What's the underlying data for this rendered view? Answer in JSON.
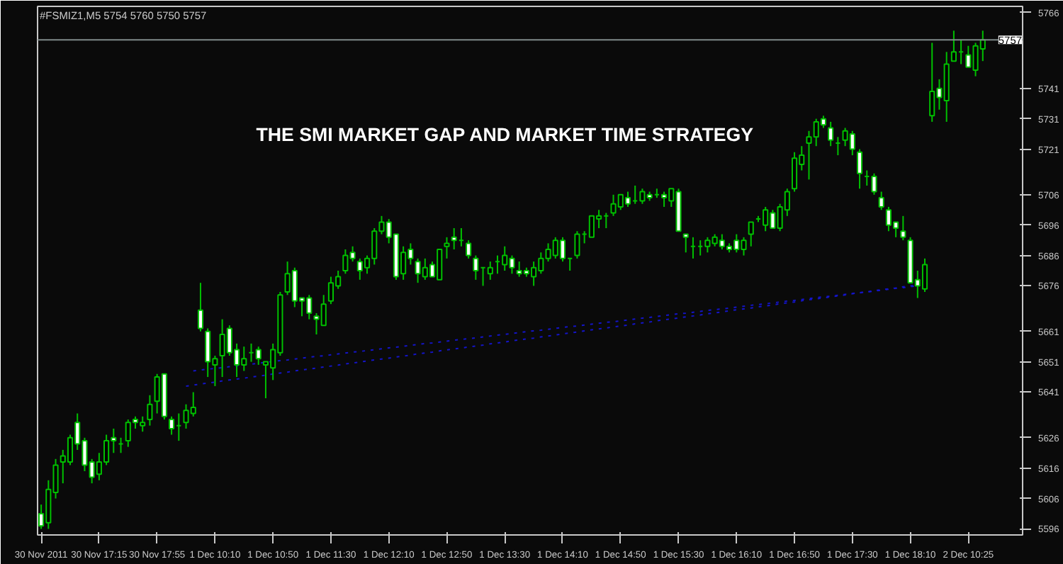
{
  "chart_data": {
    "type": "candlestick",
    "title": "#FSMIZ1,M5  5754 5760 5750 5757",
    "annotations": [
      "THE SMI MARKET GAP AND MARKET TIME STRATEGY"
    ],
    "color": "#00c000",
    "grid": false,
    "categories": [
      "30 Nov 2011",
      null,
      null,
      null,
      null,
      null,
      null,
      null,
      "30 Nov 17:15",
      null,
      null,
      null,
      null,
      null,
      null,
      null,
      "30 Nov 17:55",
      null,
      null,
      null,
      null,
      null,
      null,
      null,
      "1 Dec 10:10",
      null,
      null,
      null,
      null,
      null,
      null,
      null,
      "1 Dec 10:50",
      null,
      null,
      null,
      null,
      null,
      null,
      null,
      "1 Dec 11:30",
      null,
      null,
      null,
      null,
      null,
      null,
      null,
      "1 Dec 12:10",
      null,
      null,
      null,
      null,
      null,
      null,
      null,
      "1 Dec 12:50",
      null,
      null,
      null,
      null,
      null,
      null,
      null,
      "1 Dec 13:30",
      null,
      null,
      null,
      null,
      null,
      null,
      null,
      "1 Dec 14:10",
      null,
      null,
      null,
      null,
      null,
      null,
      null,
      "1 Dec 14:50",
      null,
      null,
      null,
      null,
      null,
      null,
      null,
      "1 Dec 15:30",
      null,
      null,
      null,
      null,
      null,
      null,
      null,
      "1 Dec 16:10",
      null,
      null,
      null,
      null,
      null,
      null,
      null,
      "1 Dec 16:50",
      null,
      null,
      null,
      null,
      null,
      null,
      null,
      "1 Dec 17:30",
      null,
      null,
      null,
      null,
      null,
      null,
      null,
      "1 Dec 18:10",
      null,
      null,
      null,
      null,
      null,
      null,
      null,
      "2 Dec 10:25",
      null,
      null
    ],
    "ohlc": [
      [
        5601,
        5604,
        5596,
        5597
      ],
      [
        5598,
        5612,
        5596,
        5609
      ],
      [
        5608,
        5619,
        5606,
        5617
      ],
      [
        5618,
        5622,
        5611,
        5620
      ],
      [
        5618,
        5627,
        5617,
        5626
      ],
      [
        5631,
        5634,
        5622,
        5624
      ],
      [
        5625,
        5626,
        5615,
        5617
      ],
      [
        5618,
        5619,
        5611,
        5613
      ],
      [
        5614,
        5621,
        5612,
        5618
      ],
      [
        5618,
        5627,
        5617,
        5625
      ],
      [
        5626,
        5629,
        5621,
        5625
      ],
      [
        5624,
        5626,
        5621,
        5624
      ],
      [
        5625,
        5632,
        5623,
        5631
      ],
      [
        5632,
        5633,
        5629,
        5631
      ],
      [
        5630,
        5633,
        5628,
        5631
      ],
      [
        5632,
        5640,
        5630,
        5637
      ],
      [
        5638,
        5647,
        5634,
        5646
      ],
      [
        5647,
        5647,
        5632,
        5633
      ],
      [
        5632,
        5633,
        5627,
        5629
      ],
      [
        5630,
        5634,
        5625,
        5630
      ],
      [
        5631,
        5637,
        5629,
        5635
      ],
      [
        5634,
        5641,
        5633,
        5636
      ],
      [
        5668,
        5677,
        5661,
        5662
      ],
      [
        5661,
        5662,
        5646,
        5651
      ],
      [
        5650,
        5653,
        5643,
        5652
      ],
      [
        5653,
        5665,
        5646,
        5660
      ],
      [
        5662,
        5663,
        5653,
        5654
      ],
      [
        5655,
        5657,
        5646,
        5650
      ],
      [
        5650,
        5656,
        5648,
        5652
      ],
      [
        5654,
        5657,
        5651,
        5654
      ],
      [
        5655,
        5656,
        5650,
        5652
      ],
      [
        5650,
        5651,
        5639,
        5651
      ],
      [
        5649,
        5657,
        5645,
        5655
      ],
      [
        5654,
        5674,
        5653,
        5673
      ],
      [
        5674,
        5684,
        5673,
        5680
      ],
      [
        5681,
        5682,
        5669,
        5671
      ],
      [
        5672,
        5672,
        5666,
        5671
      ],
      [
        5672,
        5673,
        5665,
        5667
      ],
      [
        5666,
        5667,
        5660,
        5665
      ],
      [
        5663,
        5673,
        5663,
        5670
      ],
      [
        5671,
        5679,
        5670,
        5677
      ],
      [
        5676,
        5681,
        5675,
        5679
      ],
      [
        5681,
        5688,
        5680,
        5686
      ],
      [
        5687,
        5689,
        5684,
        5685
      ],
      [
        5684,
        5685,
        5678,
        5681
      ],
      [
        5682,
        5686,
        5680,
        5685
      ],
      [
        5685,
        5695,
        5683,
        5694
      ],
      [
        5694,
        5699,
        5693,
        5697
      ],
      [
        5697,
        5698,
        5690,
        5692
      ],
      [
        5693,
        5693,
        5678,
        5679
      ],
      [
        5680,
        5689,
        5678,
        5687
      ],
      [
        5688,
        5690,
        5683,
        5685
      ],
      [
        5684,
        5685,
        5677,
        5680
      ],
      [
        5679,
        5685,
        5678,
        5682
      ],
      [
        5683,
        5684,
        5679,
        5679
      ],
      [
        5678,
        5688,
        5678,
        5688
      ],
      [
        5689,
        5692,
        5685,
        5690
      ],
      [
        5692,
        5695,
        5688,
        5691
      ],
      [
        5691,
        5695,
        5689,
        5691
      ],
      [
        5690,
        5691,
        5685,
        5686
      ],
      [
        5685,
        5686,
        5678,
        5681
      ],
      [
        5682,
        5682,
        5676,
        5682
      ],
      [
        5680,
        5684,
        5678,
        5682
      ],
      [
        5684,
        5686,
        5680,
        5684
      ],
      [
        5683,
        5689,
        5681,
        5686
      ],
      [
        5685,
        5686,
        5680,
        5682
      ],
      [
        5681,
        5684,
        5679,
        5680
      ],
      [
        5681,
        5682,
        5679,
        5680
      ],
      [
        5679,
        5684,
        5676,
        5682
      ],
      [
        5681,
        5687,
        5680,
        5685
      ],
      [
        5685,
        5690,
        5684,
        5688
      ],
      [
        5686,
        5692,
        5685,
        5691
      ],
      [
        5691,
        5692,
        5684,
        5685
      ],
      [
        5685,
        5685,
        5681,
        5685
      ],
      [
        5686,
        5694,
        5685,
        5693
      ],
      [
        5693,
        5694,
        5690,
        5693
      ],
      [
        5692,
        5699,
        5692,
        5699
      ],
      [
        5698,
        5701,
        5695,
        5699
      ],
      [
        5699,
        5700,
        5695,
        5699
      ],
      [
        5700,
        5706,
        5699,
        5703
      ],
      [
        5702,
        5706,
        5701,
        5706
      ],
      [
        5705,
        5707,
        5702,
        5703
      ],
      [
        5704,
        5709,
        5703,
        5704
      ],
      [
        5704,
        5708,
        5703,
        5707
      ],
      [
        5706,
        5707,
        5704,
        5705
      ],
      [
        5706,
        5708,
        5705,
        5706
      ],
      [
        5706,
        5707,
        5702,
        5705
      ],
      [
        5704,
        5708,
        5702,
        5708
      ],
      [
        5707,
        5708,
        5694,
        5694
      ],
      [
        5693,
        5693,
        5687,
        5692
      ],
      [
        5689,
        5692,
        5685,
        5689
      ],
      [
        5689,
        5691,
        5686,
        5689
      ],
      [
        5689,
        5692,
        5687,
        5691
      ],
      [
        5690,
        5693,
        5689,
        5692
      ],
      [
        5691,
        5693,
        5688,
        5689
      ],
      [
        5689,
        5690,
        5687,
        5688
      ],
      [
        5691,
        5693,
        5687,
        5688
      ],
      [
        5688,
        5692,
        5686,
        5691
      ],
      [
        5693,
        5697,
        5689,
        5697
      ],
      [
        5698,
        5699,
        5697,
        5698
      ],
      [
        5696,
        5702,
        5694,
        5701
      ],
      [
        5700,
        5701,
        5695,
        5695
      ],
      [
        5695,
        5703,
        5694,
        5702
      ],
      [
        5701,
        5708,
        5699,
        5707
      ],
      [
        5708,
        5720,
        5707,
        5718
      ],
      [
        5716,
        5722,
        5714,
        5719
      ],
      [
        5723,
        5727,
        5711,
        5725
      ],
      [
        5725,
        5731,
        5722,
        5730
      ],
      [
        5731,
        5732,
        5728,
        5729
      ],
      [
        5728,
        5730,
        5722,
        5724
      ],
      [
        5723,
        5725,
        5719,
        5723
      ],
      [
        5724,
        5728,
        5722,
        5727
      ],
      [
        5726,
        5727,
        5719,
        5721
      ],
      [
        5720,
        5721,
        5708,
        5713
      ],
      [
        5712,
        5714,
        5709,
        5712
      ],
      [
        5712,
        5713,
        5706,
        5707
      ],
      [
        5705,
        5707,
        5701,
        5702
      ],
      [
        5701,
        5702,
        5694,
        5696
      ],
      [
        5697,
        5697,
        5692,
        5695
      ],
      [
        5694,
        5699,
        5691,
        5692
      ],
      [
        5691,
        5692,
        5677,
        5677
      ],
      [
        5678,
        5681,
        5672,
        5676
      ],
      [
        5675,
        5685,
        5674,
        5683
      ],
      [
        5732,
        5756,
        5730,
        5740
      ],
      [
        5741,
        5744,
        5734,
        5738
      ],
      [
        5737,
        5753,
        5730,
        5749
      ],
      [
        5750,
        5760,
        5750,
        5753
      ],
      [
        5753,
        5757,
        5749,
        5753
      ],
      [
        5752,
        5755,
        5748,
        5748
      ],
      [
        5747,
        5756,
        5745,
        5755
      ],
      [
        5754,
        5760,
        5750,
        5757
      ]
    ],
    "series": [
      {
        "type": "line",
        "color": "#1414c8",
        "line_style": "dotted",
        "values": [
          null,
          null,
          null,
          null,
          null,
          null,
          null,
          null,
          null,
          null,
          null,
          null,
          null,
          null,
          null,
          null,
          null,
          null,
          null,
          null,
          5643.0,
          5643.3,
          5643.7,
          5644.0,
          5644.3,
          5644.7,
          5645.0,
          5645.3,
          5645.6,
          5646.0,
          5646.3,
          5646.6,
          5647.0,
          5647.3,
          5647.6,
          5648.0,
          5648.3,
          5648.6,
          5648.9,
          5649.3,
          5649.6,
          5649.9,
          5650.3,
          5650.6,
          5650.9,
          5651.3,
          5651.6,
          5651.9,
          5652.2,
          5652.6,
          5652.9,
          5653.2,
          5653.6,
          5653.9,
          5654.2,
          5654.6,
          5654.9,
          5655.2,
          5655.5,
          5655.9,
          5656.2,
          5656.5,
          5656.9,
          5657.2,
          5657.5,
          5657.9,
          5658.2,
          5658.5,
          5658.8,
          5659.2,
          5659.5,
          5659.8,
          5660.2,
          5660.5,
          5660.8,
          5661.2,
          5661.5,
          5661.8,
          5662.1,
          5662.5,
          5662.8,
          5663.1,
          5663.5,
          5663.8,
          5664.1,
          5664.5,
          5664.8,
          5665.1,
          5665.4,
          5665.8,
          5666.1,
          5666.4,
          5666.8,
          5667.1,
          5667.4,
          5667.8,
          5668.1,
          5668.4,
          5668.7,
          5669.1,
          5669.4,
          5669.7,
          5670.1,
          5670.4,
          5670.7,
          5671.1,
          5671.4,
          5671.7,
          5672.0,
          5672.4,
          5672.7,
          5673.0,
          5673.4,
          5673.7,
          5674.0,
          5674.4,
          5674.7,
          5675.0,
          5675.3,
          5675.7,
          5676.0,
          5676.3,
          null,
          null,
          null,
          null,
          null,
          null,
          null,
          null,
          null
        ]
      },
      {
        "type": "line",
        "color": "#1414c8",
        "line_style": "dotted",
        "values": [
          null,
          null,
          null,
          null,
          null,
          null,
          null,
          null,
          null,
          null,
          null,
          null,
          null,
          null,
          null,
          null,
          null,
          null,
          null,
          null,
          null,
          5648.0,
          5648.3,
          5648.6,
          5648.8,
          5649.1,
          5649.4,
          5649.7,
          5650.0,
          5650.2,
          5650.5,
          5650.8,
          5651.1,
          5651.4,
          5651.6,
          5651.9,
          5652.2,
          5652.5,
          5652.8,
          5653.0,
          5653.3,
          5653.6,
          5653.9,
          5654.2,
          5654.4,
          5654.7,
          5655.0,
          5655.3,
          5655.6,
          5655.8,
          5656.1,
          5656.4,
          5656.7,
          5657.0,
          5657.2,
          5657.5,
          5657.8,
          5658.1,
          5658.4,
          5658.6,
          5658.9,
          5659.2,
          5659.5,
          5659.8,
          5660.0,
          5660.3,
          5660.6,
          5660.9,
          5661.2,
          5661.4,
          5661.7,
          5662.0,
          5662.3,
          5662.6,
          5662.8,
          5663.1,
          5663.4,
          5663.7,
          5664.0,
          5664.2,
          5664.5,
          5664.8,
          5665.1,
          5665.4,
          5665.6,
          5665.9,
          5666.2,
          5666.5,
          5666.8,
          5667.0,
          5667.3,
          5667.6,
          5667.9,
          5668.2,
          5668.4,
          5668.7,
          5669.0,
          5669.3,
          5669.6,
          5669.8,
          5670.1,
          5670.4,
          5670.7,
          5671.0,
          5671.2,
          5671.5,
          5671.8,
          5672.1,
          5672.4,
          5672.6,
          5672.9,
          5673.2,
          5673.5,
          5673.8,
          5674.0,
          5674.3,
          5674.6,
          5674.9,
          5675.2,
          5675.4,
          5675.7,
          5676.0,
          null,
          null,
          null,
          null,
          null,
          null,
          null,
          null,
          null
        ]
      }
    ],
    "ylim": [
      5594,
      5768
    ],
    "yticks": [
      5766,
      5741,
      5731,
      5721,
      5706,
      5696,
      5686,
      5676,
      5661,
      5651,
      5641,
      5626,
      5616,
      5606,
      5596
    ],
    "ref_lines": [
      {
        "axis": "y",
        "value": 5757,
        "label": "5757",
        "color": "#7f8a8a"
      }
    ]
  }
}
